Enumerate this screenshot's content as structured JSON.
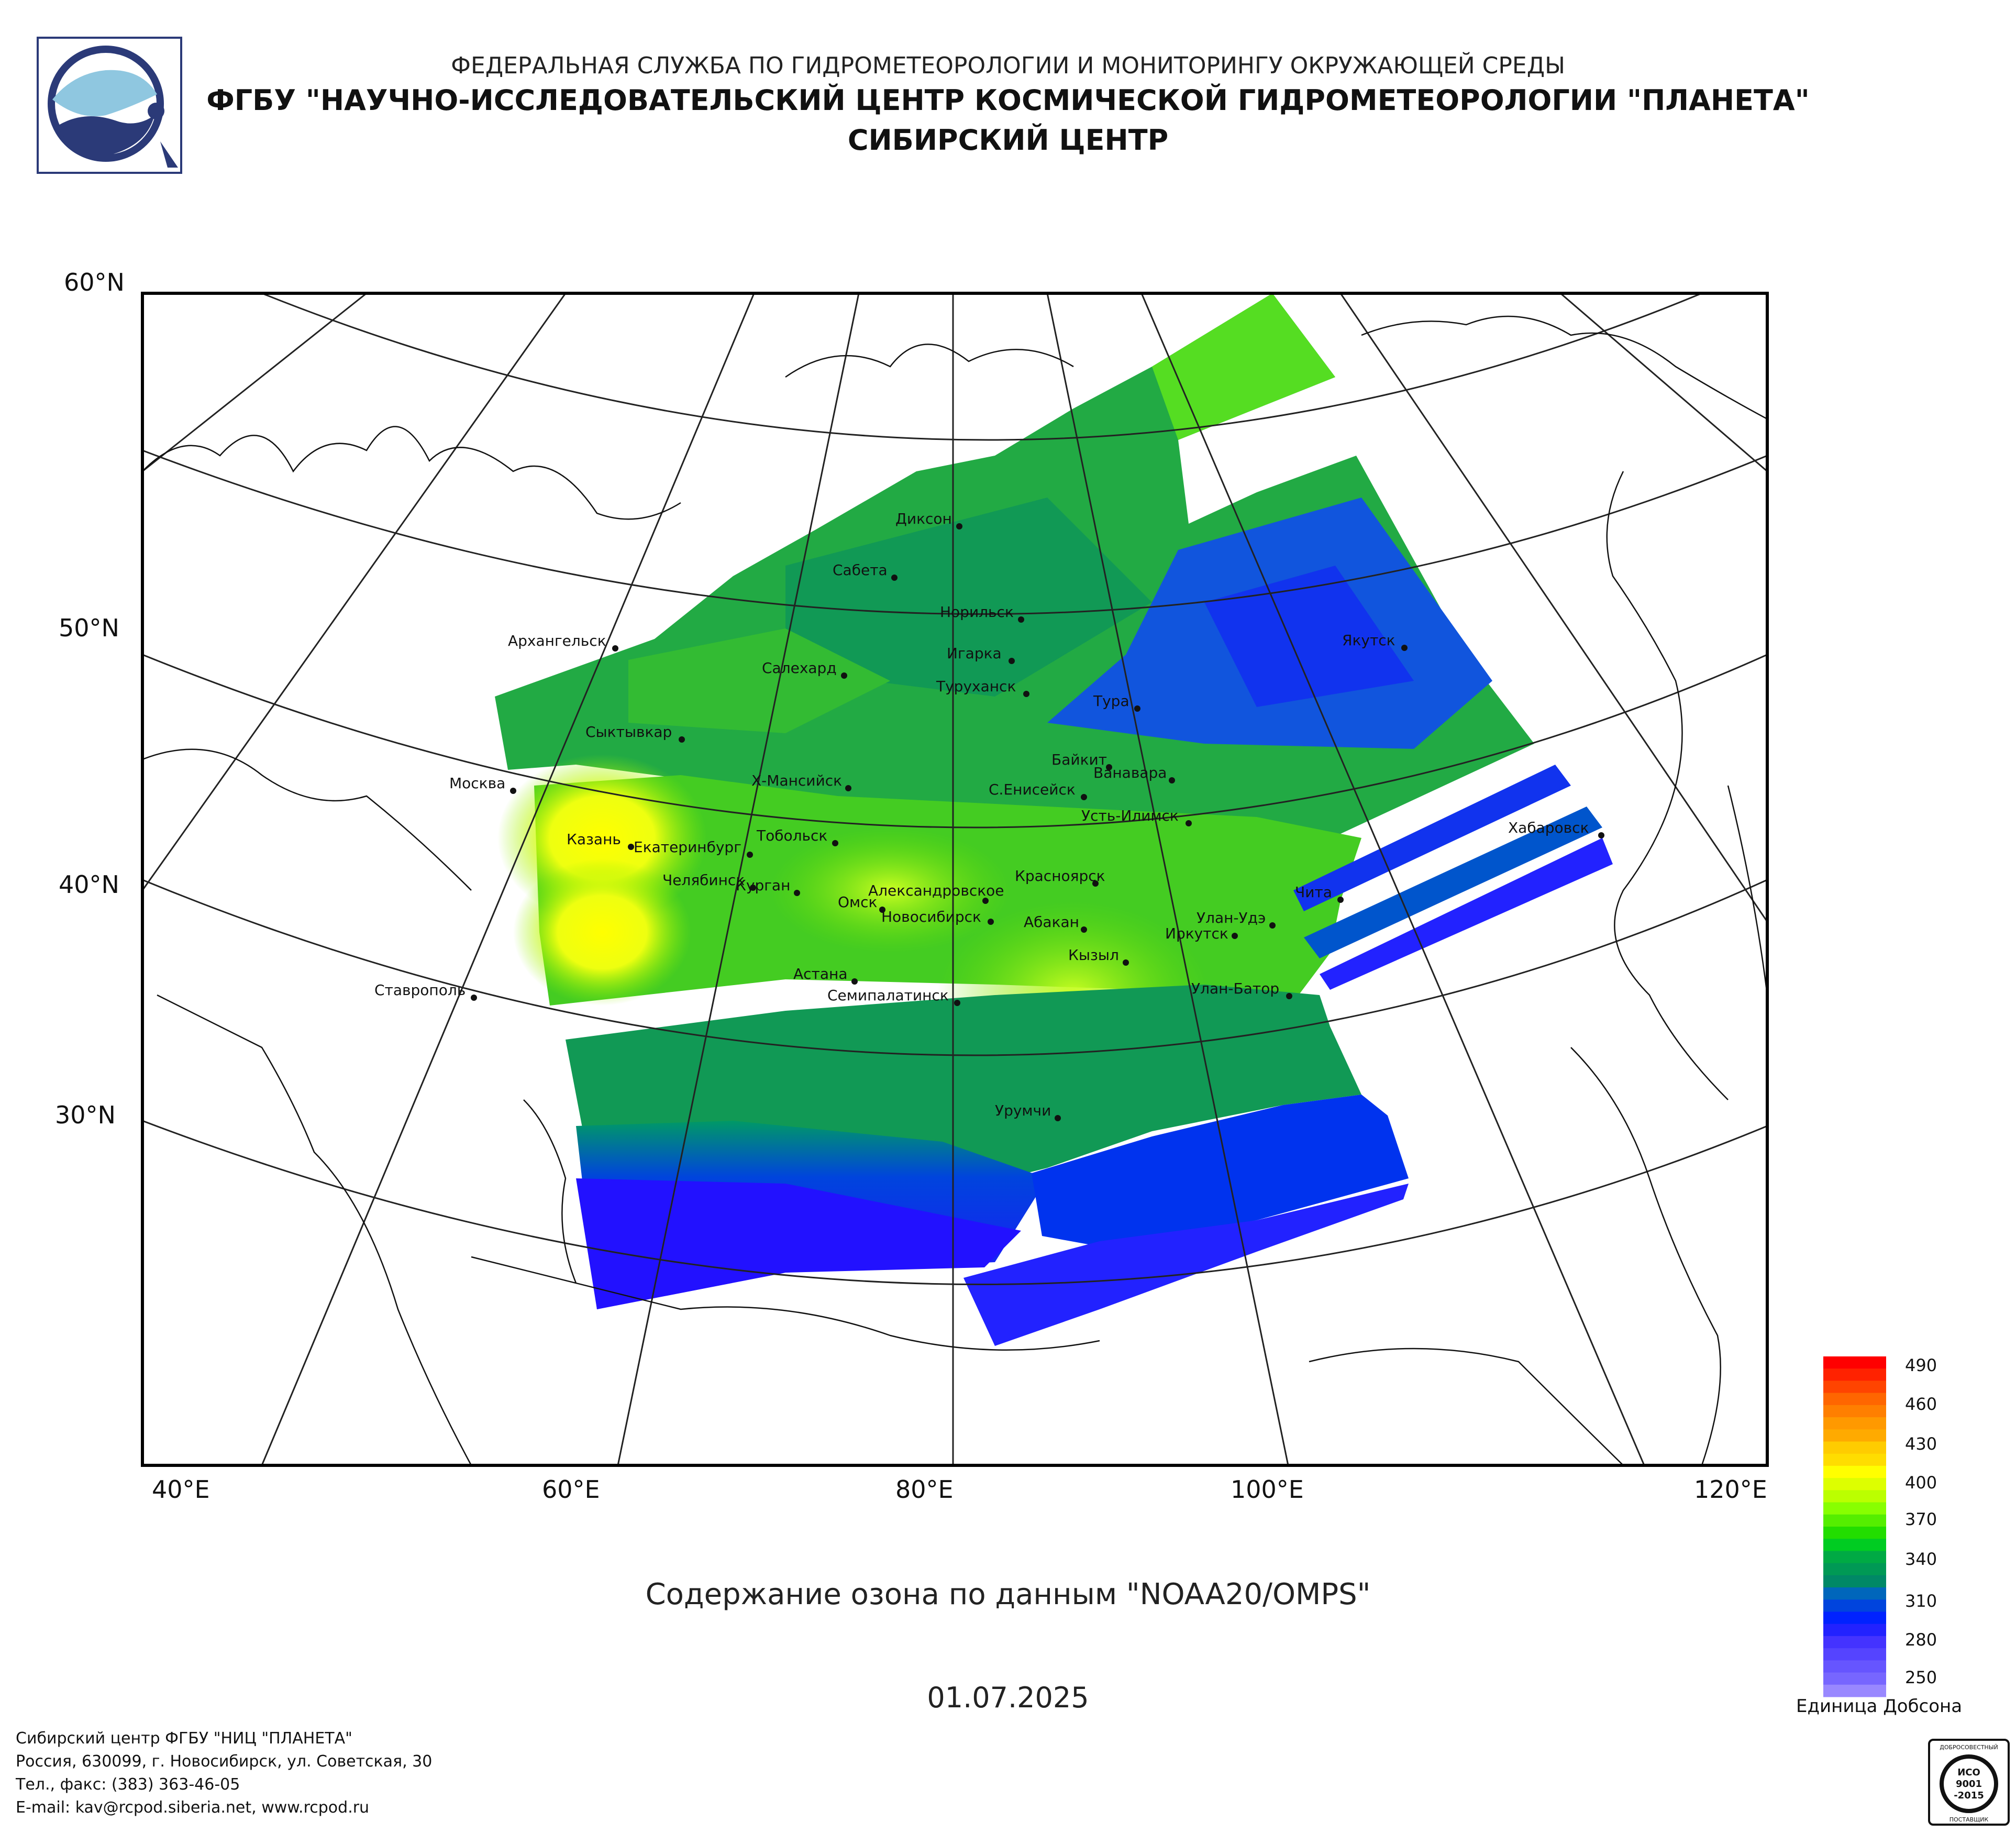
{
  "header": {
    "line1": "ФЕДЕРАЛЬНАЯ СЛУЖБА ПО ГИДРОМЕТЕОРОЛОГИИ И МОНИТОРИНГУ ОКРУЖАЮЩЕЙ СРЕДЫ",
    "line2": "ФГБУ \"НАУЧНО-ИССЛЕДОВАТЕЛЬСКИЙ ЦЕНТР КОСМИЧЕСКОЙ ГИДРОМЕТЕОРОЛОГИИ \"ПЛАНЕТА\"",
    "line3": "СИБИРСКИЙ ЦЕНТР"
  },
  "map": {
    "lat_labels": [
      "60°N",
      "50°N",
      "40°N",
      "30°N"
    ],
    "lon_labels": [
      "40°E",
      "60°E",
      "80°E",
      "100°E",
      "120°E"
    ],
    "cities": [
      {
        "name": "Диксон"
      },
      {
        "name": "Сабета"
      },
      {
        "name": "Норильск"
      },
      {
        "name": "Игарка"
      },
      {
        "name": "Салехард"
      },
      {
        "name": "Туруханск"
      },
      {
        "name": "Якутск"
      },
      {
        "name": "Тура"
      },
      {
        "name": "Архангельск"
      },
      {
        "name": "Сыктывкар"
      },
      {
        "name": "Москва"
      },
      {
        "name": "Х-Мансийск"
      },
      {
        "name": "Байкит"
      },
      {
        "name": "Ванавара"
      },
      {
        "name": "С.Енисейск"
      },
      {
        "name": "Усть-Илимск"
      },
      {
        "name": "Хабаровск"
      },
      {
        "name": "Казань"
      },
      {
        "name": "Тобольск"
      },
      {
        "name": "Екатеринбург"
      },
      {
        "name": "Челябинск"
      },
      {
        "name": "Курган"
      },
      {
        "name": "Александровское"
      },
      {
        "name": "Омск"
      },
      {
        "name": "Красноярск"
      },
      {
        "name": "Новосибирск"
      },
      {
        "name": "Абакан"
      },
      {
        "name": "Чита"
      },
      {
        "name": "Улан-Удэ"
      },
      {
        "name": "Иркутск"
      },
      {
        "name": "Кызыл"
      },
      {
        "name": "Астана"
      },
      {
        "name": "Семипалатинск"
      },
      {
        "name": "Улан-Батор"
      },
      {
        "name": "Ставрополь"
      },
      {
        "name": "Урумчи"
      }
    ]
  },
  "legend": {
    "labels": [
      "490",
      "460",
      "430",
      "400",
      "370",
      "340",
      "310",
      "280",
      "250"
    ],
    "unit": "Единица Добсона",
    "colors": [
      "#ff0000",
      "#ff2200",
      "#ff4400",
      "#ff6600",
      "#ff7f00",
      "#ff9900",
      "#ffaa00",
      "#ffcc00",
      "#ffdd00",
      "#ffff00",
      "#ddff00",
      "#bbff00",
      "#88ff00",
      "#55ee00",
      "#22dd00",
      "#00cc22",
      "#00aa44",
      "#009955",
      "#008866",
      "#0066bb",
      "#0044dd",
      "#0022ff",
      "#2222ff",
      "#4433ff",
      "#5544ff",
      "#6655ff",
      "#7766ff",
      "#9988ff"
    ]
  },
  "caption": "Содержание озона по данным \"NOAA20/OMPS\"",
  "date": "01.07.2025",
  "footer": {
    "line1": "Сибирский центр ФГБУ \"НИЦ \"ПЛАНЕТА\"",
    "line2": "Россия, 630099, г. Новосибирск, ул. Советская, 30",
    "line3": "Тел., факс: (383) 363-46-05",
    "line4": "E-mail: kav@rcpod.siberia.net, www.rcpod.ru"
  },
  "iso": {
    "top": "ДОБРОСОВЕСТНЫЙ",
    "mid1": "ИСО",
    "mid2": "9001",
    "mid3": "-2015",
    "bottom": "ПОСТАВЩИК"
  }
}
